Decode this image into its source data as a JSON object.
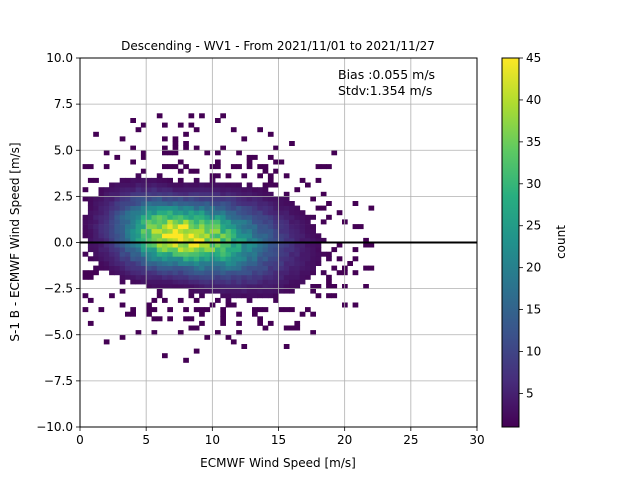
{
  "chart_data": {
    "type": "heatmap",
    "title": "Descending - WV1 - From 2021/11/01 to 2021/11/27",
    "xlabel": "ECMWF Wind Speed [m/s]",
    "ylabel": "S-1 B - ECMWF Wind Speed [m/s]",
    "xlim": [
      0,
      30
    ],
    "ylim": [
      -10,
      10
    ],
    "xticks": [
      "0",
      "5",
      "10",
      "15",
      "20",
      "25",
      "30"
    ],
    "yticks": [
      "−10.0",
      "−7.5",
      "−5.0",
      "−2.5",
      "0.0",
      "2.5",
      "5.0",
      "7.5",
      "10.0"
    ],
    "grid": true,
    "reference_line_y": 0,
    "annotation": {
      "bias": "Bias :0.055 m/s",
      "stdv": "Stdv:1.354 m/s"
    },
    "colorbar": {
      "label": "count",
      "range": [
        1,
        45
      ],
      "ticks": [
        "5",
        "10",
        "15",
        "20",
        "25",
        "30",
        "35",
        "40",
        "45"
      ],
      "colormap": "viridis"
    },
    "density_peak": {
      "x": 7.2,
      "y": -0.2,
      "count": 45
    }
  }
}
